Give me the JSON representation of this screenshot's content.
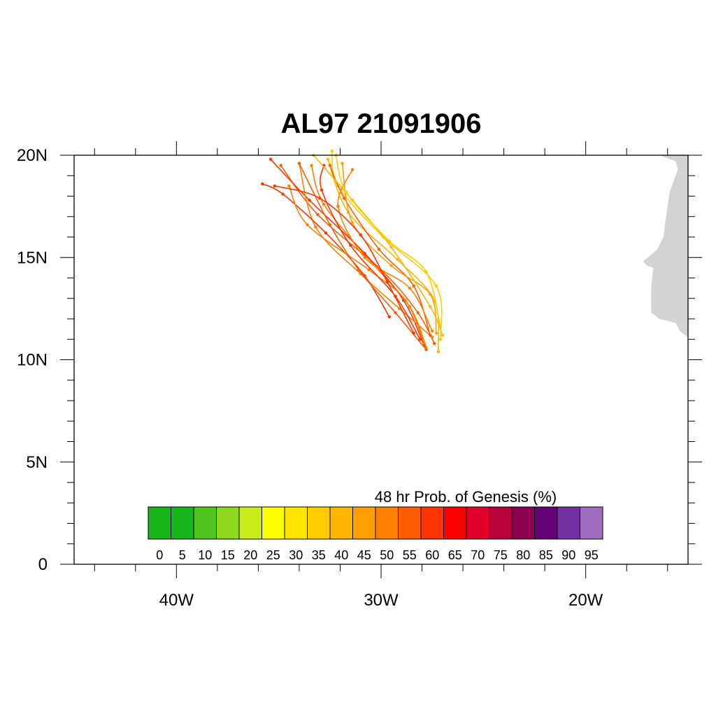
{
  "title": "AL97 21091906",
  "map": {
    "lat_range": [
      0,
      20
    ],
    "lon_range": [
      -45,
      -15
    ],
    "lat_labels": [
      {
        "value": 20,
        "text": "20N"
      },
      {
        "value": 15,
        "text": "15N"
      },
      {
        "value": 10,
        "text": "10N"
      },
      {
        "value": 5,
        "text": "5N"
      },
      {
        "value": 0,
        "text": "0"
      }
    ],
    "lon_labels": [
      {
        "value": -40,
        "text": "40W"
      },
      {
        "value": -30,
        "text": "30W"
      },
      {
        "value": -20,
        "text": "20W"
      }
    ],
    "land_color": "#d3d3d3",
    "land_polygon": [
      [
        -15,
        20
      ],
      [
        -16.4,
        20
      ],
      [
        -15.6,
        19.7
      ],
      [
        -15.5,
        19.3
      ],
      [
        -15.9,
        18.2
      ],
      [
        -16.1,
        16.8
      ],
      [
        -16.2,
        16.0
      ],
      [
        -16.5,
        15.4
      ],
      [
        -17.2,
        14.8
      ],
      [
        -17.0,
        14.6
      ],
      [
        -16.7,
        14.5
      ],
      [
        -16.8,
        13.5
      ],
      [
        -16.8,
        12.3
      ],
      [
        -16.4,
        12.0
      ],
      [
        -15.6,
        11.8
      ],
      [
        -15.4,
        11.4
      ],
      [
        -15,
        11.1
      ]
    ]
  },
  "colorbar": {
    "title": "48 hr Prob. of Genesis (%)",
    "labels": [
      "0",
      "5",
      "10",
      "15",
      "20",
      "25",
      "30",
      "35",
      "40",
      "45",
      "50",
      "55",
      "60",
      "65",
      "70",
      "75",
      "80",
      "85",
      "90",
      "95"
    ],
    "colors": [
      "#17b51a",
      "#17b51a",
      "#4ec41d",
      "#8ed91d",
      "#c8ed1a",
      "#ffff00",
      "#ffe400",
      "#ffcc00",
      "#ffb600",
      "#ffa000",
      "#ff8000",
      "#ff5c00",
      "#ff3300",
      "#ff0000",
      "#e0002a",
      "#b8003a",
      "#8c0050",
      "#640078",
      "#7030a0",
      "#9d6cbd"
    ]
  },
  "tracks": [
    {
      "color": "#ff5c00",
      "points": [
        [
          -27.4,
          10.8
        ],
        [
          -28.2,
          12.3
        ],
        [
          -29.9,
          14.3
        ],
        [
          -33.1,
          17.1
        ],
        [
          -34.9,
          19.5
        ]
      ]
    },
    {
      "color": "#ff8000",
      "points": [
        [
          -27.8,
          10.6
        ],
        [
          -28.6,
          12.6
        ],
        [
          -30.5,
          14.8
        ],
        [
          -32.8,
          17.6
        ],
        [
          -33.4,
          19.5
        ]
      ]
    },
    {
      "color": "#ffb600",
      "points": [
        [
          -27.2,
          10.4
        ],
        [
          -27.4,
          12.9
        ],
        [
          -29.2,
          14.9
        ],
        [
          -31.6,
          17.2
        ],
        [
          -32.6,
          19.8
        ]
      ]
    },
    {
      "color": "#ff3300",
      "points": [
        [
          -27.9,
          10.7
        ],
        [
          -28.9,
          12.9
        ],
        [
          -30.8,
          15.2
        ],
        [
          -33.5,
          17.8
        ],
        [
          -35.4,
          19.8
        ]
      ]
    },
    {
      "color": "#ffcc00",
      "points": [
        [
          -27.1,
          11.0
        ],
        [
          -27.3,
          13.6
        ],
        [
          -29.9,
          16.0
        ],
        [
          -32.1,
          18.5
        ],
        [
          -32.4,
          20.2
        ]
      ]
    },
    {
      "color": "#ff8000",
      "points": [
        [
          -27.5,
          11.1
        ],
        [
          -29.1,
          12.5
        ],
        [
          -31.0,
          14.2
        ],
        [
          -33.2,
          16.5
        ],
        [
          -34.0,
          19.6
        ]
      ]
    },
    {
      "color": "#ff5c00",
      "points": [
        [
          -27.6,
          11.2
        ],
        [
          -28.4,
          13.6
        ],
        [
          -30.1,
          15.4
        ],
        [
          -31.8,
          17.9
        ],
        [
          -32.5,
          19.5
        ]
      ]
    },
    {
      "color": "#ff3300",
      "points": [
        [
          -29.6,
          12.1
        ],
        [
          -30.8,
          14.1
        ],
        [
          -32.7,
          16.2
        ],
        [
          -34.8,
          18.1
        ],
        [
          -35.8,
          18.6
        ]
      ]
    },
    {
      "color": "#ffa000",
      "points": [
        [
          -27.3,
          11.3
        ],
        [
          -27.6,
          13.2
        ],
        [
          -29.5,
          14.6
        ],
        [
          -31.4,
          16.7
        ],
        [
          -31.9,
          19.6
        ]
      ]
    },
    {
      "color": "#ff8000",
      "points": [
        [
          -27.9,
          10.8
        ],
        [
          -28.8,
          12.9
        ],
        [
          -30.6,
          14.4
        ],
        [
          -33.6,
          16.6
        ],
        [
          -34.5,
          18.5
        ]
      ]
    },
    {
      "color": "#ff3300",
      "points": [
        [
          -28.1,
          11.0
        ],
        [
          -29.3,
          13.1
        ],
        [
          -31.5,
          15.6
        ],
        [
          -32.9,
          18.3
        ],
        [
          -32.8,
          19.5
        ]
      ]
    },
    {
      "color": "#ffb600",
      "points": [
        [
          -27.0,
          11.2
        ],
        [
          -27.6,
          12.6
        ],
        [
          -29.5,
          15.5
        ],
        [
          -31.4,
          17.8
        ],
        [
          -33.3,
          20.0
        ]
      ]
    },
    {
      "color": "#ff5c00",
      "points": [
        [
          -27.8,
          10.5
        ],
        [
          -29.3,
          12.3
        ],
        [
          -31.1,
          14.4
        ],
        [
          -32.5,
          16.6
        ],
        [
          -34.0,
          19.6
        ]
      ]
    },
    {
      "color": "#ff8000",
      "points": [
        [
          -27.5,
          11.4
        ],
        [
          -28.6,
          13.5
        ],
        [
          -30.8,
          15.0
        ],
        [
          -32.1,
          17.5
        ],
        [
          -31.4,
          19.3
        ]
      ]
    },
    {
      "color": "#ffcc00",
      "points": [
        [
          -27.1,
          11.6
        ],
        [
          -27.8,
          14.3
        ],
        [
          -29.6,
          15.8
        ],
        [
          -31.7,
          18.2
        ],
        [
          -32.2,
          20.0
        ]
      ]
    },
    {
      "color": "#ff3300",
      "points": [
        [
          -28.4,
          11.3
        ],
        [
          -29.7,
          13.8
        ],
        [
          -31.0,
          16.1
        ],
        [
          -33.0,
          17.9
        ],
        [
          -35.2,
          18.5
        ]
      ]
    }
  ]
}
